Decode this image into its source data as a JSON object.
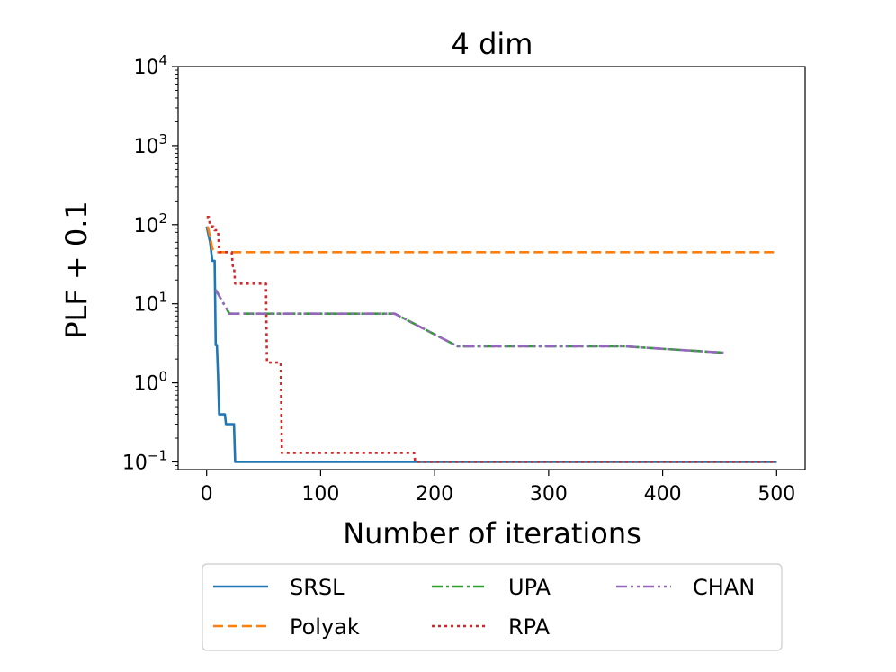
{
  "chart_data": {
    "type": "line",
    "title": "4 dim",
    "xlabel": "Number of iterations",
    "ylabel": "PLF + 0.1",
    "yscale": "log",
    "xlim": [
      -25,
      525
    ],
    "ylim": [
      0.08,
      10000
    ],
    "xticks": [
      0,
      100,
      200,
      300,
      400,
      500
    ],
    "xtick_labels": [
      "0",
      "100",
      "200",
      "300",
      "400",
      "500"
    ],
    "yticks": [
      {
        "value": 0.1,
        "base": "10",
        "exp": "−1"
      },
      {
        "value": 1,
        "base": "10",
        "exp": "0"
      },
      {
        "value": 10,
        "base": "10",
        "exp": "1"
      },
      {
        "value": 100,
        "base": "10",
        "exp": "2"
      },
      {
        "value": 1000,
        "base": "10",
        "exp": "3"
      },
      {
        "value": 10000,
        "base": "10",
        "exp": "4"
      }
    ],
    "legend_placement": "below",
    "series": [
      {
        "name": "SRSL",
        "color": "#1f77b4",
        "dash": "solid",
        "points": [
          [
            0,
            95
          ],
          [
            3,
            60
          ],
          [
            5,
            35
          ],
          [
            7,
            35
          ],
          [
            8,
            3
          ],
          [
            9,
            3
          ],
          [
            10,
            1.2
          ],
          [
            11,
            0.4
          ],
          [
            16,
            0.4
          ],
          [
            17,
            0.3
          ],
          [
            24,
            0.3
          ],
          [
            25,
            0.1
          ],
          [
            500,
            0.1
          ]
        ]
      },
      {
        "name": "Polyak",
        "color": "#ff7f0e",
        "dash": "dashed",
        "points": [
          [
            1,
            95
          ],
          [
            3,
            70
          ],
          [
            5,
            50
          ],
          [
            8,
            45
          ],
          [
            500,
            45
          ]
        ]
      },
      {
        "name": "UPA",
        "color": "#2ca02c",
        "dash": "dashdot",
        "points": [
          [
            8,
            15
          ],
          [
            20,
            7.5
          ],
          [
            165,
            7.5
          ],
          [
            220,
            2.9
          ],
          [
            365,
            2.9
          ],
          [
            455,
            2.4
          ]
        ]
      },
      {
        "name": "RPA",
        "color": "#d62728",
        "dash": "dotted",
        "points": [
          [
            0,
            125
          ],
          [
            2,
            125
          ],
          [
            3,
            95
          ],
          [
            6,
            95
          ],
          [
            7,
            85
          ],
          [
            10,
            85
          ],
          [
            11,
            45
          ],
          [
            22,
            45
          ],
          [
            23,
            30
          ],
          [
            24,
            30
          ],
          [
            25,
            18
          ],
          [
            52,
            18
          ],
          [
            53,
            1.8
          ],
          [
            65,
            1.8
          ],
          [
            66,
            0.13
          ],
          [
            182,
            0.13
          ],
          [
            183,
            0.1
          ],
          [
            500,
            0.1
          ]
        ]
      },
      {
        "name": "CHAN",
        "color": "#9467bd",
        "dash": "dashdotdot",
        "points": [
          [
            8,
            15
          ],
          [
            20,
            7.5
          ],
          [
            165,
            7.5
          ],
          [
            220,
            2.9
          ],
          [
            365,
            2.9
          ],
          [
            455,
            2.4
          ]
        ]
      }
    ],
    "legend_order": [
      "SRSL",
      "Polyak",
      "UPA",
      "RPA",
      "CHAN"
    ]
  }
}
